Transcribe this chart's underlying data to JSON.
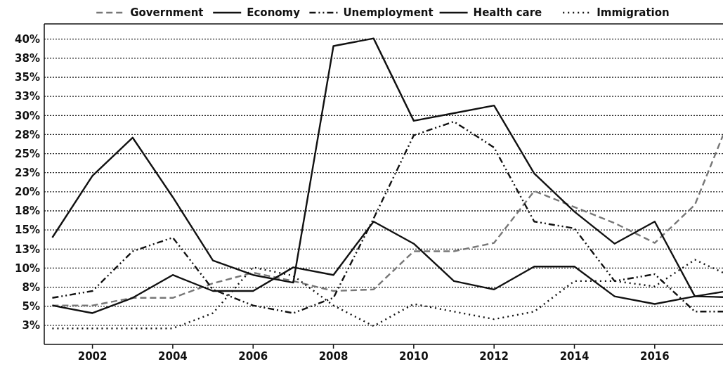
{
  "chart_data": {
    "type": "line",
    "x": [
      2001,
      2002,
      2003,
      2004,
      2005,
      2006,
      2007,
      2008,
      2009,
      2010,
      2011,
      2012,
      2013,
      2014,
      2015,
      2016,
      2017,
      2017.7
    ],
    "series": [
      {
        "name": "Government",
        "color": "#777777",
        "line_style": "dashed",
        "values": [
          5.1,
          5.1,
          6.1,
          6.1,
          8.0,
          9.4,
          8.3,
          7.0,
          7.2,
          12.2,
          12.2,
          13.3,
          20.1,
          18.0,
          15.9,
          13.3,
          18.3,
          27.4
        ]
      },
      {
        "name": "Economy",
        "color": "#111111",
        "line_style": "solid",
        "values": [
          14.0,
          22.1,
          27.1,
          19.3,
          11.0,
          9.1,
          8.1,
          39.1,
          40.1,
          29.3,
          30.3,
          31.3,
          22.4,
          17.4,
          13.2,
          16.1,
          6.3,
          6.2
        ]
      },
      {
        "name": "Unemployment",
        "color": "#111111",
        "line_style": "dashdot",
        "values": [
          6.1,
          7.0,
          12.2,
          14.0,
          7.2,
          5.1,
          4.1,
          6.1,
          16.5,
          27.4,
          29.2,
          25.8,
          16.1,
          15.2,
          8.3,
          9.2,
          4.3,
          4.3
        ]
      },
      {
        "name": "Health care",
        "color": "#111111",
        "line_style": "solid",
        "values": [
          5.1,
          4.1,
          6.1,
          9.1,
          7.0,
          7.0,
          10.1,
          9.1,
          16.1,
          13.2,
          8.3,
          7.2,
          10.2,
          10.2,
          6.3,
          5.3,
          6.3,
          6.9
        ]
      },
      {
        "name": "Immigration",
        "color": "#111111",
        "line_style": "dotted",
        "values": [
          2.1,
          2.1,
          2.1,
          2.1,
          4.1,
          10.1,
          9.0,
          5.1,
          2.4,
          5.3,
          4.3,
          3.3,
          4.3,
          8.3,
          8.3,
          7.6,
          11.1,
          9.4
        ]
      }
    ],
    "xlim": [
      2000.8,
      2017.7
    ],
    "xticks": [
      2002,
      2004,
      2006,
      2008,
      2010,
      2012,
      2014,
      2016
    ],
    "ylim": [
      0,
      42
    ],
    "yticks": [
      {
        "value": 2.5,
        "label": "3%"
      },
      {
        "value": 5,
        "label": "5%"
      },
      {
        "value": 7.5,
        "label": "8%"
      },
      {
        "value": 10,
        "label": "10%"
      },
      {
        "value": 12.5,
        "label": "13%"
      },
      {
        "value": 15,
        "label": "15%"
      },
      {
        "value": 17.5,
        "label": "18%"
      },
      {
        "value": 20,
        "label": "20%"
      },
      {
        "value": 22.5,
        "label": "23%"
      },
      {
        "value": 25,
        "label": "25%"
      },
      {
        "value": 27.5,
        "label": "28%"
      },
      {
        "value": 30,
        "label": "30%"
      },
      {
        "value": 32.5,
        "label": "33%"
      },
      {
        "value": 35,
        "label": "35%"
      },
      {
        "value": 37.5,
        "label": "38%"
      },
      {
        "value": 40,
        "label": "40%"
      }
    ],
    "grid": "y",
    "legend": "top"
  }
}
